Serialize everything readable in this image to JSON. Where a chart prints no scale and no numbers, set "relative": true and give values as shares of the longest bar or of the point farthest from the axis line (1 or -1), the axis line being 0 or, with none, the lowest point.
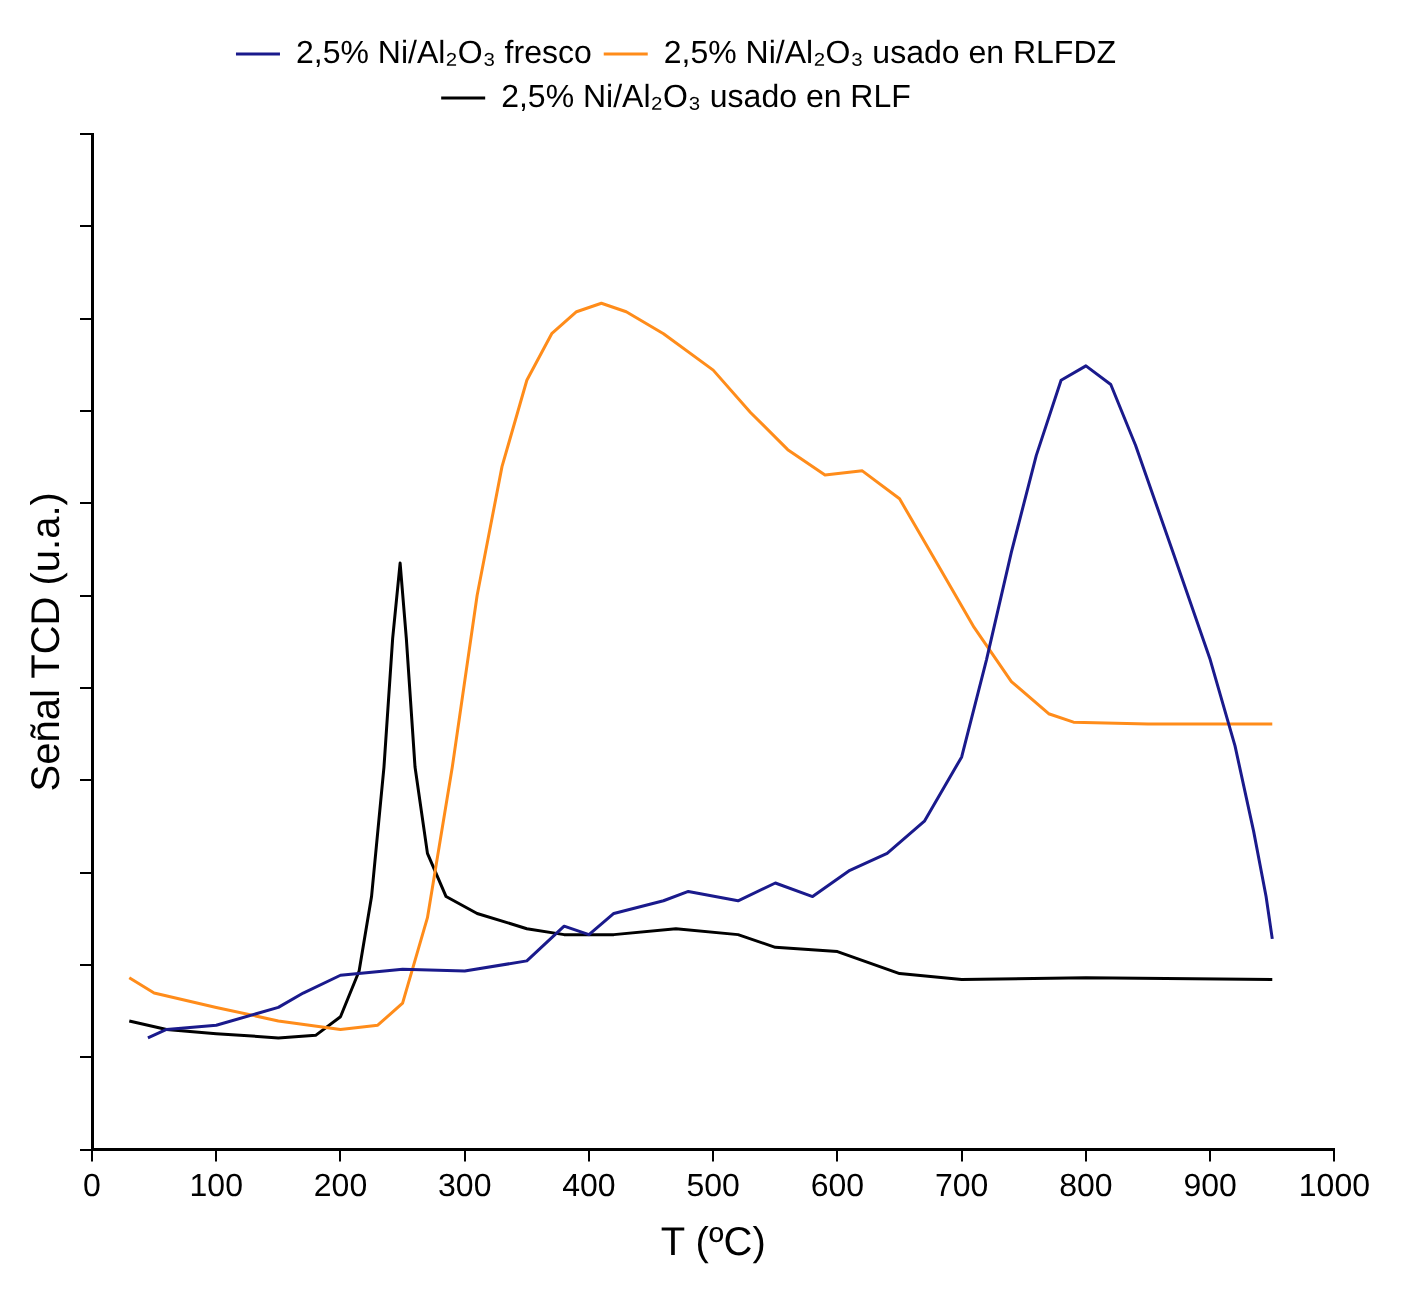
{
  "chart_data": {
    "type": "line",
    "relative": true,
    "xlabel": "T (ºC)",
    "ylabel": "Señal TCD (u.a.)",
    "xlim": [
      0,
      1000
    ],
    "xticks": [
      0,
      100,
      200,
      300,
      400,
      500,
      600,
      700,
      800,
      900,
      1000
    ],
    "grid": false,
    "legend": "top",
    "tick_labels": "x",
    "marker": "none",
    "line_style": "solid",
    "series": [
      {
        "name": "2,5% Ni/Al₂O₃ fresco",
        "color": "#1a1a8c",
        "x": [
          45,
          60,
          100,
          150,
          170,
          200,
          250,
          300,
          350,
          380,
          400,
          420,
          460,
          480,
          520,
          550,
          580,
          610,
          640,
          670,
          700,
          720,
          740,
          760,
          780,
          800,
          820,
          840,
          870,
          900,
          920,
          935,
          945,
          950
        ],
        "values": [
          0.132,
          0.142,
          0.147,
          0.168,
          0.185,
          0.206,
          0.213,
          0.211,
          0.223,
          0.264,
          0.254,
          0.279,
          0.294,
          0.305,
          0.294,
          0.315,
          0.299,
          0.33,
          0.35,
          0.388,
          0.464,
          0.579,
          0.706,
          0.82,
          0.909,
          0.926,
          0.904,
          0.832,
          0.706,
          0.579,
          0.477,
          0.376,
          0.299,
          0.249
        ]
      },
      {
        "name": "2,5% Ni/Al₂O₃ usado en RLFDZ",
        "color": "#ff8c1a",
        "x": [
          30,
          50,
          100,
          150,
          200,
          230,
          250,
          270,
          290,
          310,
          330,
          350,
          370,
          390,
          410,
          430,
          460,
          500,
          530,
          560,
          590,
          620,
          650,
          680,
          710,
          740,
          770,
          790,
          850,
          950
        ],
        "values": [
          0.203,
          0.185,
          0.168,
          0.152,
          0.142,
          0.147,
          0.173,
          0.274,
          0.452,
          0.655,
          0.807,
          0.909,
          0.964,
          0.99,
          1,
          0.99,
          0.964,
          0.921,
          0.871,
          0.827,
          0.797,
          0.802,
          0.769,
          0.693,
          0.617,
          0.553,
          0.515,
          0.505,
          0.503,
          0.503
        ]
      },
      {
        "name": "2,5% Ni/Al₂O₃ usado en RLF",
        "color": "#000000",
        "x": [
          30,
          60,
          100,
          150,
          180,
          200,
          215,
          225,
          235,
          242,
          248,
          253,
          260,
          270,
          285,
          310,
          350,
          380,
          420,
          470,
          520,
          550,
          600,
          650,
          700,
          800,
          950
        ],
        "values": [
          0.152,
          0.142,
          0.137,
          0.132,
          0.135,
          0.157,
          0.211,
          0.299,
          0.452,
          0.604,
          0.693,
          0.604,
          0.452,
          0.35,
          0.299,
          0.279,
          0.261,
          0.254,
          0.254,
          0.261,
          0.254,
          0.239,
          0.234,
          0.208,
          0.201,
          0.203,
          0.201
        ]
      }
    ]
  }
}
